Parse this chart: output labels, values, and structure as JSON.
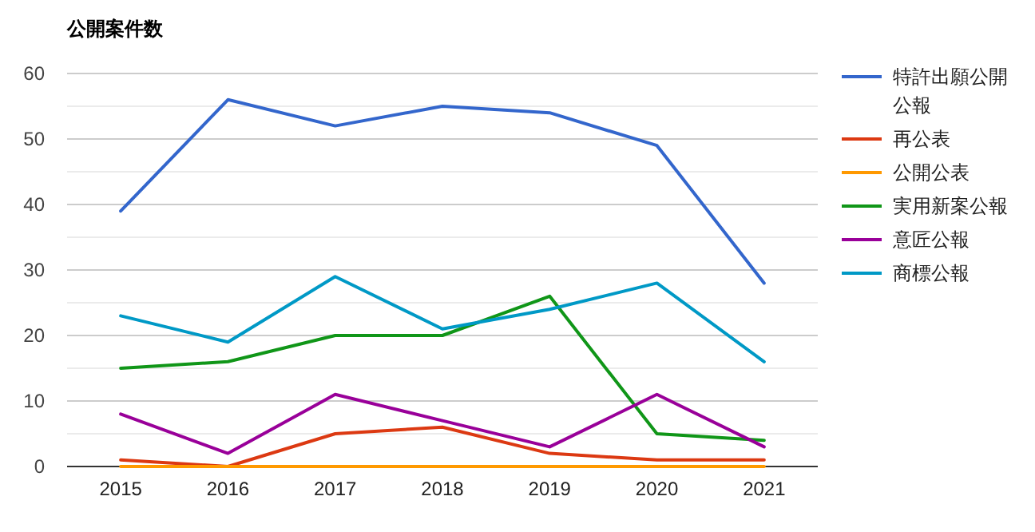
{
  "chart_data": {
    "type": "line",
    "title": "公開案件数",
    "categories": [
      "2015",
      "2016",
      "2017",
      "2018",
      "2019",
      "2020",
      "2021"
    ],
    "series": [
      {
        "name": "特許出願公開公報",
        "color": "#3366cc",
        "values": [
          39,
          56,
          52,
          55,
          54,
          49,
          28
        ]
      },
      {
        "name": "再公表",
        "color": "#dc3912",
        "values": [
          1,
          0,
          5,
          6,
          2,
          1,
          1
        ]
      },
      {
        "name": "公開公表",
        "color": "#ff9900",
        "values": [
          0,
          0,
          0,
          0,
          0,
          0,
          0
        ]
      },
      {
        "name": "実用新案公報",
        "color": "#109618",
        "values": [
          15,
          16,
          20,
          20,
          26,
          5,
          4
        ]
      },
      {
        "name": "意匠公報",
        "color": "#990099",
        "values": [
          8,
          2,
          11,
          7,
          3,
          11,
          3
        ]
      },
      {
        "name": "商標公報",
        "color": "#0099c6",
        "values": [
          23,
          19,
          29,
          21,
          24,
          28,
          16
        ]
      }
    ],
    "ylim": [
      0,
      60
    ],
    "yticks": [
      0,
      {
        "value": 5,
        "label": null
      },
      10,
      {
        "value": 15,
        "label": null
      },
      20,
      {
        "value": 25,
        "label": null
      },
      30,
      {
        "value": 35,
        "label": null
      },
      40,
      {
        "value": 45,
        "label": null
      },
      50,
      {
        "value": 55,
        "label": null
      },
      60
    ],
    "grid": "y",
    "legend": "right",
    "marker": "none",
    "line_style": "solid"
  }
}
